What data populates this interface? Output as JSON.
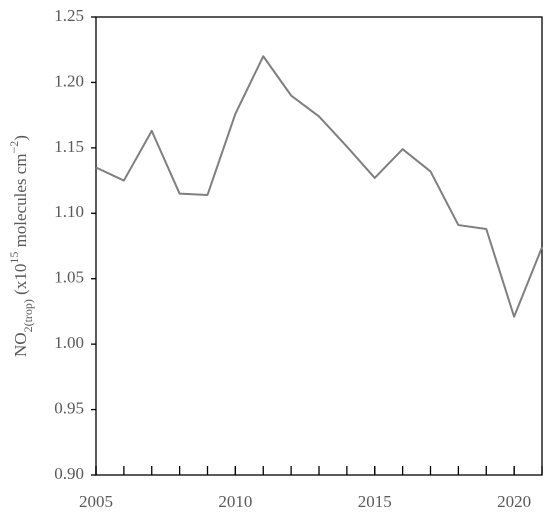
{
  "chart_data": {
    "type": "line",
    "ylabel": [
      {
        "text": "NO"
      },
      {
        "text": "2(trop)",
        "shift": "sub"
      },
      {
        "text": " (x10"
      },
      {
        "text": "15",
        "shift": "super"
      },
      {
        "text": " molecules cm"
      },
      {
        "text": "−2",
        "shift": "super"
      },
      {
        "text": ")"
      }
    ],
    "x": [
      2005,
      2006,
      2007,
      2008,
      2009,
      2010,
      2011,
      2012,
      2013,
      2014,
      2015,
      2016,
      2017,
      2018,
      2019,
      2020,
      2021
    ],
    "series": [
      {
        "color": "#7f7f7f",
        "values": [
          1.135,
          1.125,
          1.163,
          1.115,
          1.114,
          1.176,
          1.22,
          1.19,
          1.174,
          1.151,
          1.127,
          1.149,
          1.132,
          1.091,
          1.088,
          1.021,
          1.074
        ]
      }
    ],
    "xlim": [
      2005,
      2021
    ],
    "xticks": [
      2005,
      2010,
      2015,
      2020
    ],
    "xminorticks": [
      2005,
      2006,
      2007,
      2008,
      2009,
      2010,
      2011,
      2012,
      2013,
      2014,
      2015,
      2016,
      2017,
      2018,
      2019,
      2020,
      2021
    ],
    "ylim": [
      0.9,
      1.25
    ],
    "yticks": [
      {
        "value": 0.9,
        "label": "0.90"
      },
      0.95,
      {
        "value": 1,
        "label": "1.00"
      },
      1.05,
      {
        "value": 1.1,
        "label": "1.10"
      },
      1.15,
      {
        "value": 1.2,
        "label": "1.20"
      },
      1.25
    ],
    "grid": false
  }
}
